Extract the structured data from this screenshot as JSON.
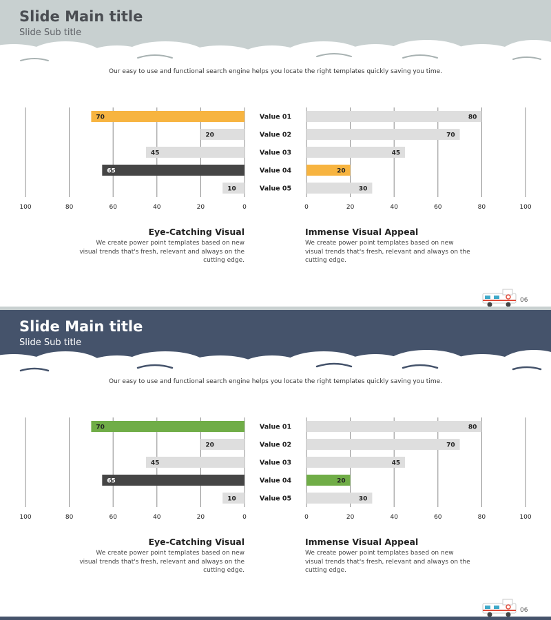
{
  "slides": [
    {
      "title": "Slide Main title",
      "subtitle": "Slide Sub title",
      "tagline": "Our easy to use and functional search engine helps you locate the right templates quickly saving you time.",
      "header_color": "#c8d0d0",
      "accent_color": "#f7b440",
      "dark_color": "#454545",
      "neutral_color": "#dedede",
      "left_heading": "Eye-Catching Visual",
      "left_desc": "We create power point templates based on new visual trends that's fresh, relevant and always on the cutting edge.",
      "right_heading": "Immense Visual Appeal",
      "right_desc": "We create power point templates based on new visual trends that's fresh, relevant and always on the cutting edge.",
      "page_number": "06"
    },
    {
      "title": "Slide Main title",
      "subtitle": "Slide Sub title",
      "tagline": "Our easy to use and functional search engine helps you locate the right templates quickly saving you time.",
      "header_color": "#45536b",
      "accent_color": "#70ad47",
      "dark_color": "#454545",
      "neutral_color": "#dedede",
      "left_heading": "Eye-Catching Visual",
      "left_desc": "We create power point templates based on new visual trends that's fresh, relevant and always on the cutting edge.",
      "right_heading": "Immense Visual Appeal",
      "right_desc": "We create power point templates based on new visual trends that's fresh, relevant and always on the cutting edge.",
      "page_number": "06"
    }
  ],
  "chart_data": [
    {
      "type": "bar",
      "orientation": "horizontal-mirrored",
      "categories": [
        "Value 01",
        "Value 02",
        "Value 03",
        "Value 04",
        "Value 05"
      ],
      "series": [
        {
          "values": [
            70,
            20,
            45,
            65,
            10
          ]
        },
        {
          "values": [
            80,
            70,
            45,
            20,
            30
          ]
        }
      ],
      "highlight": {
        "left": [
          0,
          3
        ],
        "right": [
          3
        ]
      },
      "xlim": [
        0,
        100
      ],
      "ticks": [
        0,
        20,
        40,
        60,
        80,
        100
      ],
      "grid": true
    },
    {
      "type": "bar",
      "orientation": "horizontal-mirrored",
      "categories": [
        "Value 01",
        "Value 02",
        "Value 03",
        "Value 04",
        "Value 05"
      ],
      "series": [
        {
          "values": [
            70,
            20,
            45,
            65,
            10
          ]
        },
        {
          "values": [
            80,
            70,
            45,
            20,
            30
          ]
        }
      ],
      "highlight": {
        "left": [
          0,
          3
        ],
        "right": [
          3
        ]
      },
      "xlim": [
        0,
        100
      ],
      "ticks": [
        0,
        20,
        40,
        60,
        80,
        100
      ],
      "grid": true
    }
  ]
}
